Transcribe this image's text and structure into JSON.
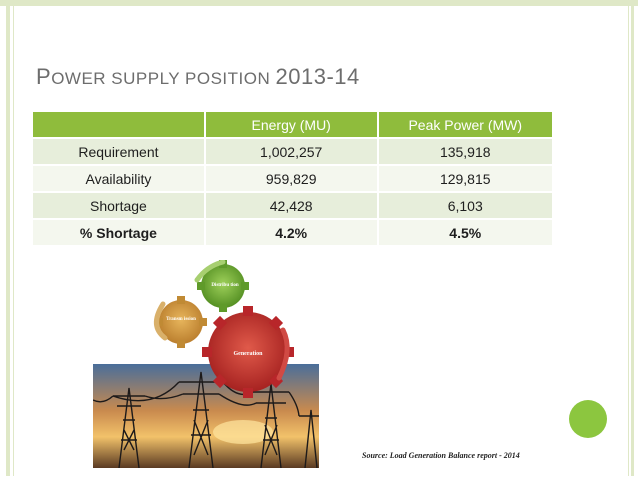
{
  "slide": {
    "title_cap1": "P",
    "title_rest1": "OWER SUPPLY POSITION ",
    "title_year": "2013-14"
  },
  "table": {
    "headers": [
      "",
      "Energy (MU)",
      "Peak Power (MW)"
    ],
    "rows": [
      [
        "Requirement",
        "1,002,257",
        "135,918"
      ],
      [
        "Availability",
        "959,829",
        "129,815"
      ],
      [
        "Shortage",
        "42,428",
        "6,103"
      ],
      [
        "% Shortage",
        "4.2%",
        "4.5%"
      ]
    ]
  },
  "illustration": {
    "gear_labels": [
      "Distribu tion",
      "Transm ission",
      "Generation"
    ]
  },
  "source": "Source: Load Generation Balance report - 2014",
  "colors": {
    "header_green": "#8fbc3c",
    "accent_dot": "#8cc63f",
    "row_odd": "#e7eedb",
    "row_even": "#f4f7ee"
  }
}
